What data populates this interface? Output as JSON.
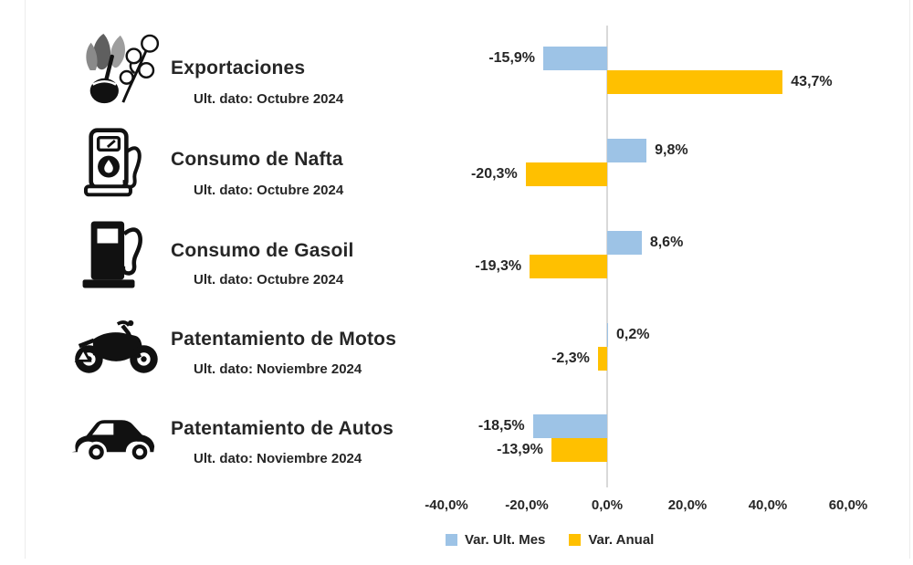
{
  "chart_data": {
    "type": "bar",
    "orientation": "horizontal",
    "title": "",
    "categories": [
      "Exportaciones",
      "Consumo de Nafta",
      "Consumo de Gasoil",
      "Patentamiento de Motos",
      "Patentamiento de Autos"
    ],
    "series": [
      {
        "name": "Var. Ult. Mes",
        "color": "#9DC3E6",
        "values": [
          -15.9,
          9.8,
          8.6,
          0.2,
          -18.5
        ]
      },
      {
        "name": "Var. Anual",
        "color": "#FFC000",
        "values": [
          43.7,
          -20.3,
          -19.3,
          -2.3,
          -13.9
        ]
      }
    ],
    "rows": [
      {
        "label": "Exportaciones",
        "sublabel": "Ult. dato: Octubre 2024",
        "icon": "agro-export-icon",
        "bars": [
          {
            "series": "Var. Ult. Mes",
            "value": -15.9,
            "label": "-15,9%"
          },
          {
            "series": "Var. Anual",
            "value": 43.7,
            "label": "43,7%"
          }
        ]
      },
      {
        "label": "Consumo de Nafta",
        "sublabel": "Ult. dato: Octubre 2024",
        "icon": "fuel-pump-outline-icon",
        "bars": [
          {
            "series": "Var. Ult. Mes",
            "value": 9.8,
            "label": "9,8%"
          },
          {
            "series": "Var. Anual",
            "value": -20.3,
            "label": "-20,3%"
          }
        ]
      },
      {
        "label": "Consumo de Gasoil",
        "sublabel": "Ult. dato: Octubre 2024",
        "icon": "fuel-pump-solid-icon",
        "bars": [
          {
            "series": "Var. Ult. Mes",
            "value": 8.6,
            "label": "8,6%"
          },
          {
            "series": "Var. Anual",
            "value": -19.3,
            "label": "-19,3%"
          }
        ]
      },
      {
        "label": "Patentamiento de Motos",
        "sublabel": "Ult. dato: Noviembre 2024",
        "icon": "motorcycle-icon",
        "bars": [
          {
            "series": "Var. Ult. Mes",
            "value": 0.2,
            "label": "0,2%"
          },
          {
            "series": "Var. Anual",
            "value": -2.3,
            "label": "-2,3%"
          }
        ]
      },
      {
        "label": "Patentamiento de Autos",
        "sublabel": "Ult. dato: Noviembre 2024",
        "icon": "car-icon",
        "bars": [
          {
            "series": "Var. Ult. Mes",
            "value": -18.5,
            "label": "-18,5%"
          },
          {
            "series": "Var. Anual",
            "value": -13.9,
            "label": "-13,9%"
          }
        ]
      }
    ],
    "x_axis": {
      "min": -40,
      "max": 60,
      "tick_values": [
        -40,
        -20,
        0,
        20,
        40,
        60
      ],
      "ticks": [
        "-40,0%",
        "-20,0%",
        "0,0%",
        "20,0%",
        "40,0%",
        "60,0%"
      ]
    },
    "legend": [
      {
        "label": "Var. Ult. Mes",
        "color": "#9DC3E6"
      },
      {
        "label": "Var. Anual",
        "color": "#FFC000"
      }
    ],
    "grid": false,
    "legend_position": "bottom",
    "value_label_format": "decimal-comma-percent"
  },
  "colors": {
    "bar_blue": "#9DC3E6",
    "bar_yellow": "#FFC000",
    "axis_line": "#D9D9D9",
    "text": "#262626",
    "card_border": "#ECECEC"
  }
}
